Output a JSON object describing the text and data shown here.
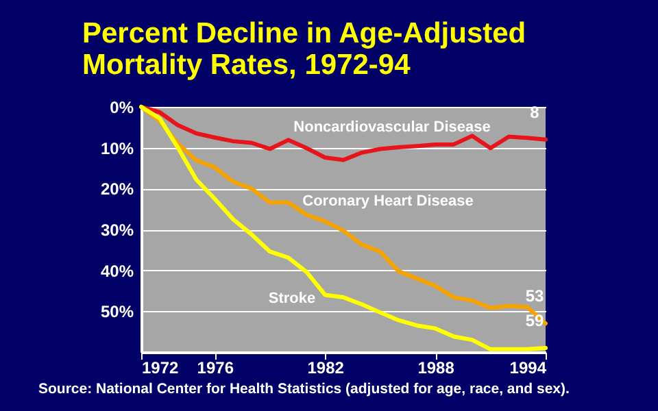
{
  "chart_data": {
    "type": "line",
    "title": "Percent Decline in Age-Adjusted\nMortality Rates, 1972-94",
    "x": [
      1972,
      1973,
      1974,
      1975,
      1976,
      1977,
      1978,
      1979,
      1980,
      1981,
      1982,
      1983,
      1984,
      1985,
      1986,
      1987,
      1988,
      1989,
      1990,
      1991,
      1992,
      1993,
      1994
    ],
    "series": [
      {
        "name": "Noncardiovascular Disease",
        "color": "#e8141c",
        "values": [
          0,
          1.3,
          4.5,
          6.5,
          7.5,
          8.4,
          8.8,
          10.3,
          8.1,
          10.1,
          12.4,
          13,
          11.2,
          10.3,
          9.9,
          9.6,
          9.2,
          9.2,
          7.1,
          10.1,
          7.3,
          7.6,
          8
        ],
        "value_labels": [
          null,
          null,
          null,
          null,
          null,
          null,
          null,
          null,
          null,
          null,
          null,
          null,
          null,
          null,
          null,
          null,
          null,
          null,
          null,
          null,
          null,
          null,
          "8"
        ]
      },
      {
        "name": "Coronary Heart Disease",
        "color": "#f5a300",
        "values": [
          0,
          3.4,
          9,
          13.1,
          14.8,
          18.3,
          20,
          23.4,
          23.4,
          26.4,
          28,
          30.3,
          33.7,
          35.4,
          40.2,
          42,
          43.8,
          46.6,
          47.4,
          49.2,
          48.7,
          49,
          53
        ],
        "value_labels": [
          null,
          null,
          null,
          null,
          null,
          null,
          null,
          null,
          null,
          null,
          null,
          null,
          null,
          null,
          null,
          null,
          null,
          null,
          null,
          null,
          null,
          null,
          "53"
        ]
      },
      {
        "name": "Stroke",
        "color": "#ffff00",
        "values": [
          0,
          2.8,
          10,
          17.8,
          22.5,
          27.5,
          31.2,
          35.4,
          36.9,
          40.4,
          46,
          46.6,
          48.3,
          50.3,
          52.2,
          53.5,
          54.2,
          56.2,
          57,
          59.3,
          59.3,
          59.3,
          59
        ],
        "value_labels": [
          null,
          null,
          null,
          null,
          null,
          null,
          null,
          null,
          null,
          null,
          null,
          null,
          null,
          null,
          null,
          null,
          null,
          null,
          null,
          null,
          null,
          null,
          "59"
        ]
      }
    ],
    "xlim": [
      1972,
      1994
    ],
    "xticks": [
      1972,
      1976,
      1982,
      1988,
      1994
    ],
    "ylim": [
      60,
      0
    ],
    "yticks": [
      {
        "value": 0,
        "label": "0%"
      },
      {
        "value": 10,
        "label": "10%"
      },
      {
        "value": 20,
        "label": "20%"
      },
      {
        "value": 30,
        "label": "30%"
      },
      {
        "value": 40,
        "label": "40%"
      },
      {
        "value": 50,
        "label": "50%"
      }
    ],
    "grid": "y",
    "legend": false,
    "marker": "none",
    "line_style": "solid",
    "annotations": [
      "Source: National Center for Health Statistics (adjusted for age, race, and sex)."
    ]
  }
}
